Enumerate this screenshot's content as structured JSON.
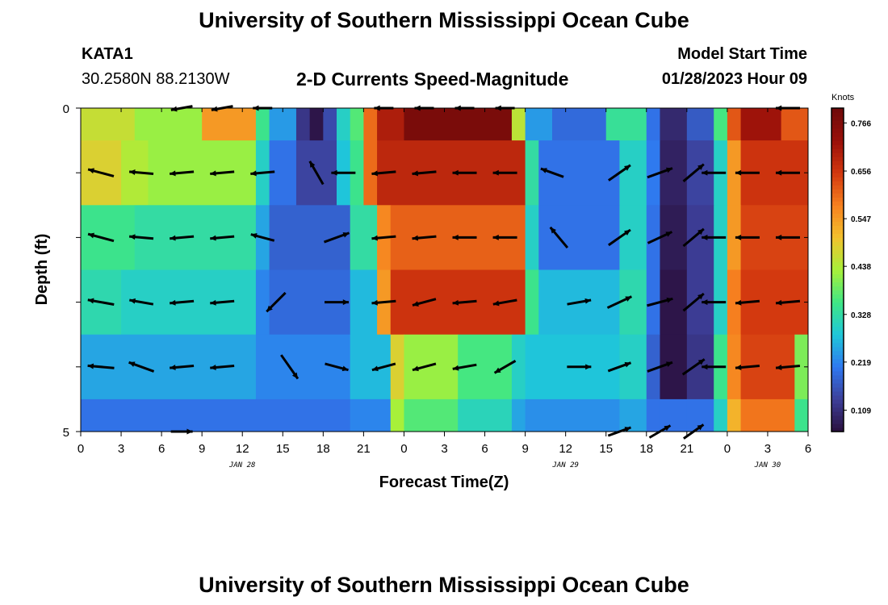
{
  "header": {
    "title": "University of Southern Mississippi Ocean Cube",
    "station": "KATA1",
    "coords": "30.2580N  88.2130W",
    "subtitle": "2-D Currents Speed-Magnitude",
    "model_label": "Model Start Time",
    "model_time": "01/28/2023 Hour 09",
    "footer_title": "University of Southern Mississippi Ocean Cube"
  },
  "chart_data": {
    "type": "heatmap",
    "title": "2-D Currents Speed-Magnitude",
    "xlabel": "Forecast Time(Z)",
    "ylabel": "Depth (ft)",
    "x_tick_labels": [
      "0",
      "3",
      "6",
      "9",
      "12",
      "15",
      "18",
      "21",
      "0",
      "3",
      "6",
      "9",
      "12",
      "15",
      "18",
      "21",
      "0",
      "3",
      "6"
    ],
    "x_date_labels": [
      {
        "label": "JAN 28",
        "hour": 12
      },
      {
        "label": "JAN 29",
        "hour": 36
      },
      {
        "label": "JAN 30",
        "hour": 51
      }
    ],
    "y_tick_labels": [
      "0",
      "5"
    ],
    "ylim": [
      0,
      5
    ],
    "xlim_hours": [
      0,
      54
    ],
    "colorbar": {
      "label": "Knots",
      "ticks": [
        "0.766",
        "0.656",
        "0.547",
        "0.438",
        "0.328",
        "0.219",
        "0.109"
      ],
      "tick_values": [
        0.766,
        0.656,
        0.547,
        0.438,
        0.328,
        0.219,
        0.109
      ],
      "range": [
        0.06,
        0.8
      ],
      "colors": [
        "#2a0f3c",
        "#3d3f99",
        "#2f78f0",
        "#1fc7d9",
        "#3fe685",
        "#a7f03a",
        "#f2c12e",
        "#f7811f",
        "#d2370f",
        "#99100a",
        "#6e0a0a"
      ]
    },
    "depth_levels": [
      0,
      1,
      2,
      3,
      4,
      5
    ],
    "layers": [
      {
        "depth": 0,
        "segments": [
          [
            0,
            4,
            0.46
          ],
          [
            4,
            9,
            0.42
          ],
          [
            9,
            13,
            0.55
          ],
          [
            13,
            14,
            0.35
          ],
          [
            14,
            16,
            0.24
          ],
          [
            16,
            17,
            0.12
          ],
          [
            17,
            18,
            0.07
          ],
          [
            18,
            19,
            0.15
          ],
          [
            19,
            20,
            0.3
          ],
          [
            20,
            21,
            0.37
          ],
          [
            21,
            22,
            0.6
          ],
          [
            22,
            24,
            0.7
          ],
          [
            24,
            32,
            0.78
          ],
          [
            32,
            33,
            0.45
          ],
          [
            33,
            35,
            0.24
          ],
          [
            35,
            39,
            0.19
          ],
          [
            39,
            42,
            0.34
          ],
          [
            42,
            43,
            0.2
          ],
          [
            43,
            45,
            0.1
          ],
          [
            45,
            47,
            0.17
          ],
          [
            47,
            48,
            0.36
          ],
          [
            48,
            49,
            0.62
          ],
          [
            49,
            52,
            0.72
          ],
          [
            52,
            54,
            0.62
          ]
        ]
      },
      {
        "depth": 1,
        "segments": [
          [
            0,
            3,
            0.48
          ],
          [
            3,
            5,
            0.44
          ],
          [
            5,
            13,
            0.42
          ],
          [
            13,
            14,
            0.3
          ],
          [
            14,
            16,
            0.2
          ],
          [
            16,
            19,
            0.14
          ],
          [
            19,
            20,
            0.28
          ],
          [
            20,
            21,
            0.35
          ],
          [
            21,
            22,
            0.6
          ],
          [
            22,
            33,
            0.68
          ],
          [
            33,
            34,
            0.33
          ],
          [
            34,
            40,
            0.2
          ],
          [
            40,
            42,
            0.3
          ],
          [
            42,
            43,
            0.21
          ],
          [
            43,
            45,
            0.09
          ],
          [
            45,
            47,
            0.14
          ],
          [
            47,
            48,
            0.3
          ],
          [
            48,
            49,
            0.55
          ],
          [
            49,
            54,
            0.66
          ]
        ]
      },
      {
        "depth": 2,
        "segments": [
          [
            0,
            4,
            0.35
          ],
          [
            4,
            13,
            0.33
          ],
          [
            13,
            14,
            0.25
          ],
          [
            14,
            20,
            0.18
          ],
          [
            20,
            22,
            0.33
          ],
          [
            22,
            23,
            0.57
          ],
          [
            23,
            33,
            0.61
          ],
          [
            33,
            34,
            0.3
          ],
          [
            34,
            40,
            0.2
          ],
          [
            40,
            42,
            0.3
          ],
          [
            42,
            43,
            0.2
          ],
          [
            43,
            45,
            0.08
          ],
          [
            45,
            47,
            0.13
          ],
          [
            47,
            48,
            0.3
          ],
          [
            48,
            49,
            0.55
          ],
          [
            49,
            54,
            0.64
          ]
        ]
      },
      {
        "depth": 3,
        "segments": [
          [
            0,
            3,
            0.32
          ],
          [
            3,
            13,
            0.3
          ],
          [
            13,
            14,
            0.22
          ],
          [
            14,
            20,
            0.19
          ],
          [
            20,
            22,
            0.27
          ],
          [
            22,
            23,
            0.55
          ],
          [
            23,
            33,
            0.66
          ],
          [
            33,
            34,
            0.35
          ],
          [
            34,
            40,
            0.27
          ],
          [
            40,
            42,
            0.32
          ],
          [
            42,
            43,
            0.2
          ],
          [
            43,
            45,
            0.07
          ],
          [
            45,
            47,
            0.13
          ],
          [
            47,
            48,
            0.3
          ],
          [
            48,
            49,
            0.58
          ],
          [
            49,
            54,
            0.65
          ]
        ]
      },
      {
        "depth": 4,
        "segments": [
          [
            0,
            13,
            0.25
          ],
          [
            13,
            20,
            0.22
          ],
          [
            20,
            23,
            0.27
          ],
          [
            23,
            24,
            0.48
          ],
          [
            24,
            28,
            0.42
          ],
          [
            28,
            32,
            0.36
          ],
          [
            32,
            33,
            0.3
          ],
          [
            33,
            40,
            0.28
          ],
          [
            40,
            42,
            0.3
          ],
          [
            42,
            43,
            0.18
          ],
          [
            43,
            45,
            0.07
          ],
          [
            45,
            47,
            0.12
          ],
          [
            47,
            48,
            0.35
          ],
          [
            48,
            49,
            0.57
          ],
          [
            49,
            53,
            0.64
          ],
          [
            53,
            54,
            0.4
          ]
        ]
      }
    ],
    "arrows": [
      {
        "depth": 0,
        "h": 7.5,
        "ang": 190,
        "len": 0.45
      },
      {
        "depth": 0,
        "h": 10.5,
        "ang": 190,
        "len": 0.45
      },
      {
        "depth": 0,
        "h": 13.5,
        "ang": 180,
        "len": 0.4
      },
      {
        "depth": 0,
        "h": 22.5,
        "ang": 180,
        "len": 0.4
      },
      {
        "depth": 0,
        "h": 25.5,
        "ang": 180,
        "len": 0.4
      },
      {
        "depth": 0,
        "h": 28.5,
        "ang": 180,
        "len": 0.4
      },
      {
        "depth": 0,
        "h": 31.5,
        "ang": 180,
        "len": 0.4
      },
      {
        "depth": 0,
        "h": 52.5,
        "ang": 180,
        "len": 0.5
      },
      {
        "depth": 1,
        "h": 1.5,
        "ang": 165,
        "len": 0.55
      },
      {
        "depth": 1,
        "h": 4.5,
        "ang": 175,
        "len": 0.5
      },
      {
        "depth": 1,
        "h": 7.5,
        "ang": 185,
        "len": 0.5
      },
      {
        "depth": 1,
        "h": 10.5,
        "ang": 185,
        "len": 0.5
      },
      {
        "depth": 1,
        "h": 13.5,
        "ang": 185,
        "len": 0.5
      },
      {
        "depth": 1,
        "h": 17.5,
        "ang": 120,
        "len": 0.55
      },
      {
        "depth": 1,
        "h": 19.5,
        "ang": 180,
        "len": 0.5
      },
      {
        "depth": 1,
        "h": 22.5,
        "ang": 185,
        "len": 0.5
      },
      {
        "depth": 1,
        "h": 25.5,
        "ang": 185,
        "len": 0.5
      },
      {
        "depth": 1,
        "h": 28.5,
        "ang": 180,
        "len": 0.5
      },
      {
        "depth": 1,
        "h": 31.5,
        "ang": 180,
        "len": 0.5
      },
      {
        "depth": 1,
        "h": 35,
        "ang": 160,
        "len": 0.5
      },
      {
        "depth": 1,
        "h": 40,
        "ang": 35,
        "len": 0.55
      },
      {
        "depth": 1,
        "h": 43,
        "ang": 20,
        "len": 0.55
      },
      {
        "depth": 1,
        "h": 45.5,
        "ang": 40,
        "len": 0.55
      },
      {
        "depth": 1,
        "h": 47,
        "ang": 180,
        "len": 0.5
      },
      {
        "depth": 1,
        "h": 49.5,
        "ang": 180,
        "len": 0.5
      },
      {
        "depth": 1,
        "h": 52.5,
        "ang": 180,
        "len": 0.5
      },
      {
        "depth": 2,
        "h": 1.5,
        "ang": 165,
        "len": 0.55
      },
      {
        "depth": 2,
        "h": 4.5,
        "ang": 175,
        "len": 0.5
      },
      {
        "depth": 2,
        "h": 7.5,
        "ang": 185,
        "len": 0.5
      },
      {
        "depth": 2,
        "h": 10.5,
        "ang": 185,
        "len": 0.5
      },
      {
        "depth": 2,
        "h": 13.5,
        "ang": 165,
        "len": 0.5
      },
      {
        "depth": 2,
        "h": 19,
        "ang": 20,
        "len": 0.55
      },
      {
        "depth": 2,
        "h": 22.5,
        "ang": 185,
        "len": 0.5
      },
      {
        "depth": 2,
        "h": 25.5,
        "ang": 185,
        "len": 0.5
      },
      {
        "depth": 2,
        "h": 28.5,
        "ang": 180,
        "len": 0.5
      },
      {
        "depth": 2,
        "h": 31.5,
        "ang": 180,
        "len": 0.5
      },
      {
        "depth": 2,
        "h": 35.5,
        "ang": 130,
        "len": 0.55
      },
      {
        "depth": 2,
        "h": 40,
        "ang": 35,
        "len": 0.55
      },
      {
        "depth": 2,
        "h": 43,
        "ang": 25,
        "len": 0.55
      },
      {
        "depth": 2,
        "h": 45.5,
        "ang": 40,
        "len": 0.55
      },
      {
        "depth": 2,
        "h": 47,
        "ang": 180,
        "len": 0.5
      },
      {
        "depth": 2,
        "h": 49.5,
        "ang": 180,
        "len": 0.5
      },
      {
        "depth": 2,
        "h": 52.5,
        "ang": 180,
        "len": 0.5
      },
      {
        "depth": 3,
        "h": 1.5,
        "ang": 170,
        "len": 0.55
      },
      {
        "depth": 3,
        "h": 4.5,
        "ang": 170,
        "len": 0.5
      },
      {
        "depth": 3,
        "h": 7.5,
        "ang": 185,
        "len": 0.5
      },
      {
        "depth": 3,
        "h": 10.5,
        "ang": 185,
        "len": 0.5
      },
      {
        "depth": 3,
        "h": 14.5,
        "ang": 225,
        "len": 0.55
      },
      {
        "depth": 3,
        "h": 19,
        "ang": 0,
        "len": 0.5
      },
      {
        "depth": 3,
        "h": 22.5,
        "ang": 185,
        "len": 0.5
      },
      {
        "depth": 3,
        "h": 25.5,
        "ang": 195,
        "len": 0.5
      },
      {
        "depth": 3,
        "h": 28.5,
        "ang": 185,
        "len": 0.5
      },
      {
        "depth": 3,
        "h": 31.5,
        "ang": 190,
        "len": 0.5
      },
      {
        "depth": 3,
        "h": 37,
        "ang": 10,
        "len": 0.5
      },
      {
        "depth": 3,
        "h": 40,
        "ang": 25,
        "len": 0.55
      },
      {
        "depth": 3,
        "h": 43,
        "ang": 15,
        "len": 0.55
      },
      {
        "depth": 3,
        "h": 45.5,
        "ang": 40,
        "len": 0.55
      },
      {
        "depth": 3,
        "h": 47,
        "ang": 180,
        "len": 0.5
      },
      {
        "depth": 3,
        "h": 49.5,
        "ang": 185,
        "len": 0.5
      },
      {
        "depth": 3,
        "h": 52.5,
        "ang": 185,
        "len": 0.5
      },
      {
        "depth": 4,
        "h": 1.5,
        "ang": 175,
        "len": 0.55
      },
      {
        "depth": 4,
        "h": 4.5,
        "ang": 160,
        "len": 0.55
      },
      {
        "depth": 4,
        "h": 7.5,
        "ang": 185,
        "len": 0.5
      },
      {
        "depth": 4,
        "h": 10.5,
        "ang": 185,
        "len": 0.5
      },
      {
        "depth": 4,
        "h": 15.5,
        "ang": 305,
        "len": 0.6
      },
      {
        "depth": 4,
        "h": 19,
        "ang": 345,
        "len": 0.5
      },
      {
        "depth": 4,
        "h": 22.5,
        "ang": 195,
        "len": 0.5
      },
      {
        "depth": 4,
        "h": 25.5,
        "ang": 195,
        "len": 0.5
      },
      {
        "depth": 4,
        "h": 28.5,
        "ang": 190,
        "len": 0.5
      },
      {
        "depth": 4,
        "h": 31.5,
        "ang": 210,
        "len": 0.5
      },
      {
        "depth": 4,
        "h": 37,
        "ang": 0,
        "len": 0.5
      },
      {
        "depth": 4,
        "h": 40,
        "ang": 20,
        "len": 0.5
      },
      {
        "depth": 4,
        "h": 43,
        "ang": 20,
        "len": 0.55
      },
      {
        "depth": 4,
        "h": 45.5,
        "ang": 35,
        "len": 0.55
      },
      {
        "depth": 4,
        "h": 47,
        "ang": 180,
        "len": 0.5
      },
      {
        "depth": 4,
        "h": 49.5,
        "ang": 185,
        "len": 0.5
      },
      {
        "depth": 4,
        "h": 52.5,
        "ang": 185,
        "len": 0.5
      },
      {
        "depth": 5,
        "h": 7.5,
        "ang": 0,
        "len": 0.45
      },
      {
        "depth": 5,
        "h": 40,
        "ang": 20,
        "len": 0.5
      },
      {
        "depth": 5,
        "h": 43,
        "ang": 30,
        "len": 0.5
      },
      {
        "depth": 5,
        "h": 45.5,
        "ang": 35,
        "len": 0.5
      }
    ]
  }
}
